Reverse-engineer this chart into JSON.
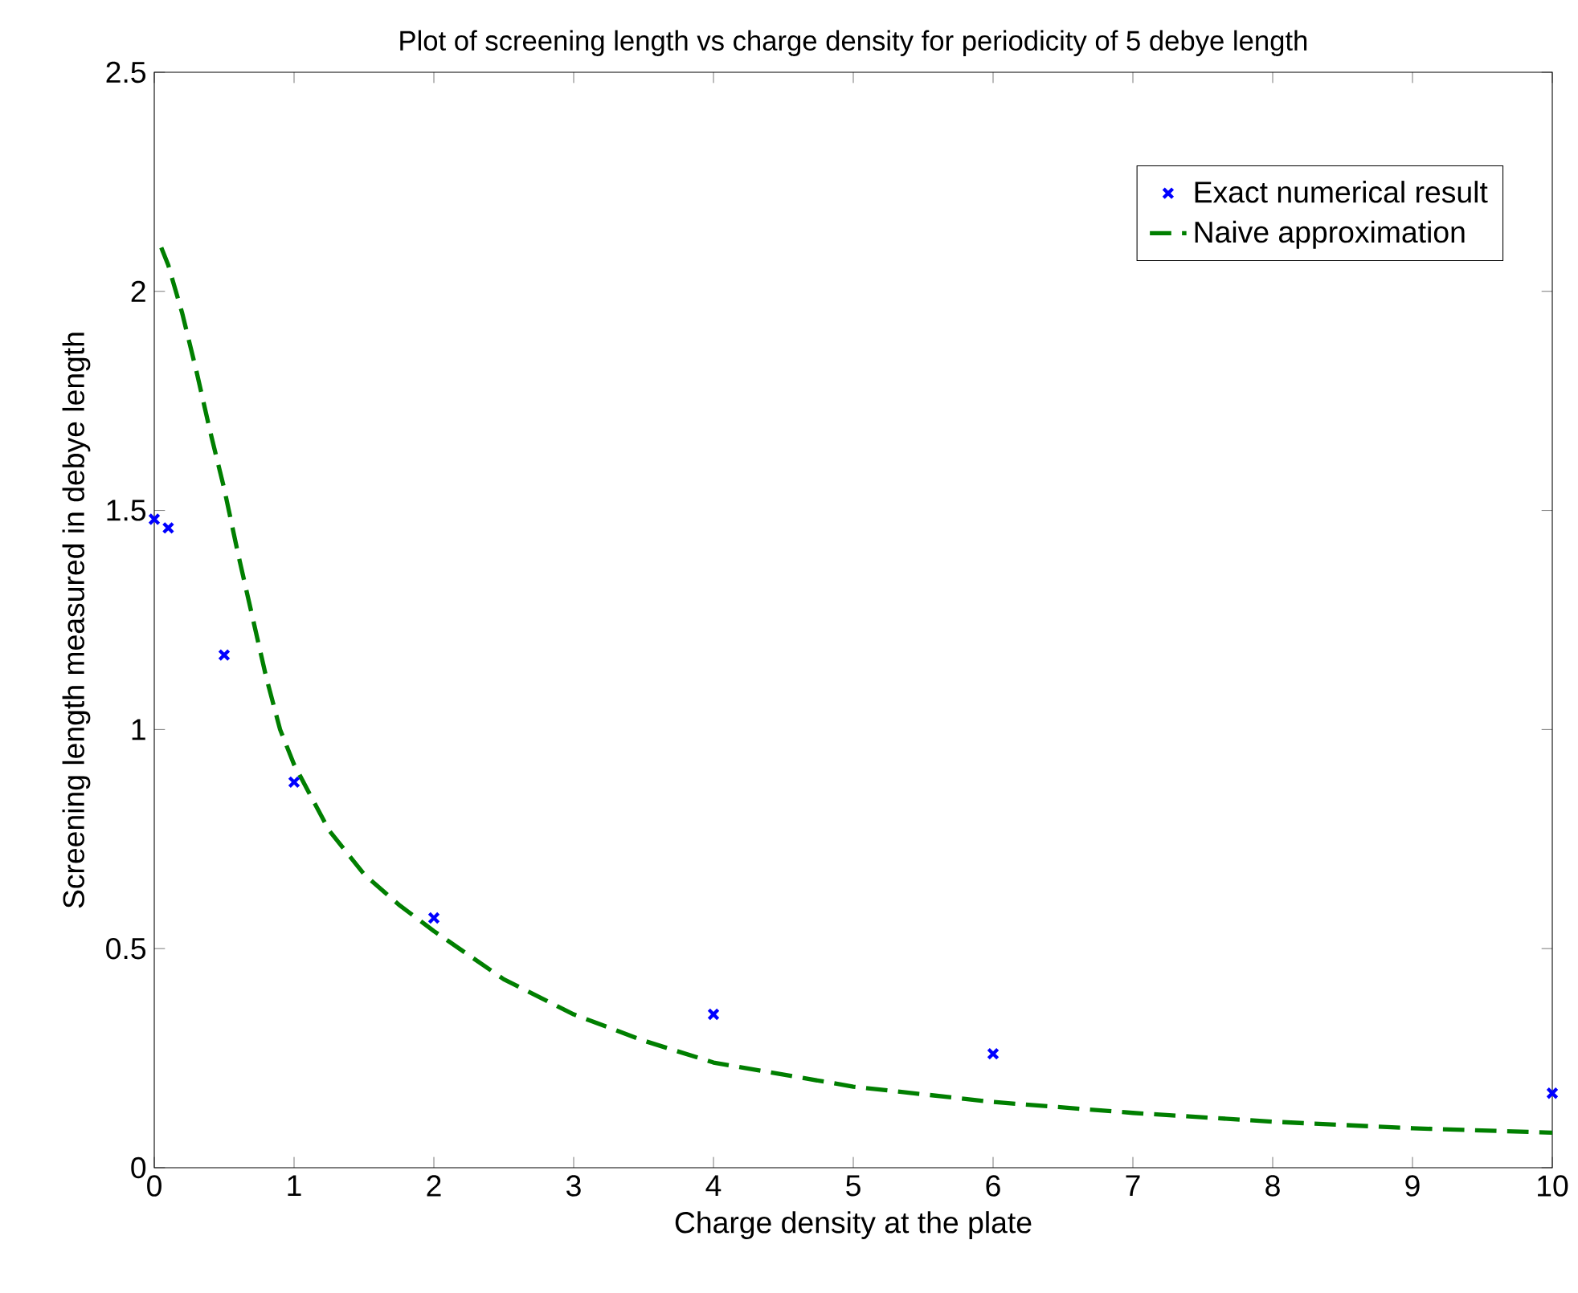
{
  "chart_data": {
    "type": "scatter",
    "title": "Plot of screening length vs charge density for periodicity of 5 debye length",
    "xlabel": "Charge density at the plate",
    "ylabel": "Screening length measured in debye length",
    "xlim": [
      0,
      10
    ],
    "ylim": [
      0,
      2.5
    ],
    "xticks": [
      0,
      1,
      2,
      3,
      4,
      5,
      6,
      7,
      8,
      9,
      10
    ],
    "yticks": [
      0,
      0.5,
      1,
      1.5,
      2,
      2.5
    ],
    "legend": "top right",
    "grid": false,
    "series": [
      {
        "name": "Exact numerical result",
        "marker": "cross",
        "color": "#0000ff",
        "x": [
          0,
          0.1,
          0.5,
          1,
          2,
          4,
          6,
          10
        ],
        "values": [
          1.48,
          1.46,
          1.17,
          0.88,
          0.57,
          0.35,
          0.26,
          0.17
        ]
      },
      {
        "name": "Naive approximation",
        "type": "line",
        "marker": "none",
        "line_style": "dashed",
        "color": "#007f00",
        "x": [
          0.05,
          0.1,
          0.2,
          0.3,
          0.4,
          0.5,
          0.6,
          0.7,
          0.8,
          0.9,
          1,
          1.25,
          1.5,
          1.75,
          2,
          2.5,
          3,
          3.5,
          4,
          5,
          6,
          7,
          8,
          9,
          10
        ],
        "values": [
          2.1,
          2.06,
          1.95,
          1.82,
          1.68,
          1.55,
          1.4,
          1.26,
          1.12,
          1.0,
          0.92,
          0.77,
          0.67,
          0.6,
          0.54,
          0.43,
          0.35,
          0.29,
          0.24,
          0.185,
          0.15,
          0.125,
          0.105,
          0.09,
          0.08
        ]
      }
    ]
  }
}
